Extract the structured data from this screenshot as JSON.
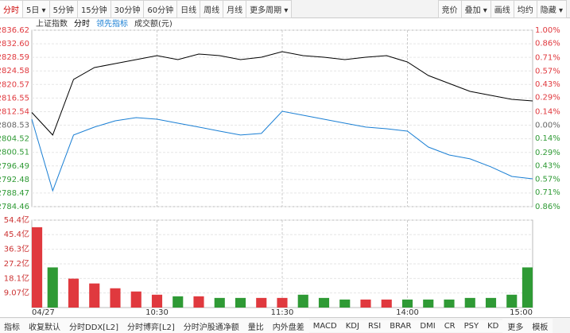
{
  "toolbar": {
    "left": [
      "分时",
      "5日 ▾",
      "5分钟",
      "15分钟",
      "30分钟",
      "60分钟",
      "日线",
      "周线",
      "月线",
      "更多周期 ▾"
    ],
    "right": [
      "竞价",
      "叠加 ▾",
      "画线",
      "均约",
      "隐藏 ▾"
    ]
  },
  "chart_data": {
    "type": "line",
    "title": "上证指数",
    "categories": [
      "04/27",
      null,
      null,
      null,
      null,
      null,
      "10:30",
      null,
      null,
      null,
      null,
      null,
      "11:30",
      null,
      null,
      null,
      null,
      null,
      "14:00",
      null,
      null,
      null,
      null,
      null,
      "15:00"
    ],
    "series": [
      {
        "name": "分时",
        "color": "#000000",
        "values": [
          2812.3,
          2805.62,
          2822.06,
          2825.58,
          2826.75,
          2827.93,
          2829.1,
          2827.93,
          2829.57,
          2829.1,
          2827.93,
          2828.63,
          2830.28,
          2829.1,
          2828.63,
          2827.93,
          2828.63,
          2829.1,
          2827.22,
          2823.23,
          2820.88,
          2818.53,
          2817.36,
          2816.18,
          2815.71
        ]
      },
      {
        "name": "领先指标",
        "color": "#1a7fd4",
        "values": [
          2810.31,
          2789.17,
          2805.62,
          2807.97,
          2809.84,
          2810.78,
          2810.31,
          2809.13,
          2807.97,
          2806.79,
          2805.62,
          2806.09,
          2812.66,
          2811.49,
          2810.31,
          2809.13,
          2807.97,
          2807.49,
          2806.79,
          2802.09,
          2799.74,
          2798.57,
          2796.22,
          2793.4,
          2792.69
        ]
      },
      {
        "name": "成交额(元)",
        "type": "bar",
        "axis": "y3",
        "up_color": "#e0393e",
        "down_color": "#2f9a35",
        "values": [
          50,
          25,
          18,
          15,
          12,
          10,
          8,
          7,
          7,
          6,
          6,
          6,
          6,
          8,
          6,
          5,
          5,
          5,
          5,
          5,
          5,
          6,
          6,
          8,
          25
        ]
      }
    ],
    "ylim": [
      2784.46,
      2836.62
    ],
    "yticks": [
      2836.62,
      {
        "value": 2832.6,
        "label": "2832.60"
      },
      2828.59,
      2824.58,
      2820.57,
      2816.55,
      2812.54,
      2808.53,
      2804.52,
      2800.51,
      2796.49,
      2792.48,
      2788.47,
      2784.46
    ],
    "y2lim": [
      -0.86,
      1.0
    ],
    "y2ticks": [
      {
        "value": 1.0,
        "label": "1.00%"
      },
      {
        "value": 0.86,
        "label": "0.86%"
      },
      {
        "value": 0.71,
        "label": "0.71%"
      },
      {
        "value": 0.57,
        "label": "0.57%"
      },
      {
        "value": 0.43,
        "label": "0.43%"
      },
      {
        "value": 0.29,
        "label": "0.29%"
      },
      {
        "value": 0.14,
        "label": "0.14%"
      },
      {
        "value": 0.0,
        "label": "0.00%"
      },
      {
        "value": -0.14,
        "label": "0.14%"
      },
      {
        "value": -0.29,
        "label": "0.29%"
      },
      {
        "value": -0.43,
        "label": "0.43%"
      },
      {
        "value": -0.57,
        "label": "0.57%"
      },
      {
        "value": -0.71,
        "label": "0.71%"
      },
      {
        "value": -0.86,
        "label": "0.86%"
      }
    ],
    "y3lim": [
      0,
      54.4
    ],
    "y3ticks": [
      {
        "value": 54.4,
        "label": "54.4亿"
      },
      {
        "value": 45.4,
        "label": "45.4亿"
      },
      {
        "value": 36.3,
        "label": "36.3亿"
      },
      {
        "value": 27.2,
        "label": "27.2亿"
      },
      {
        "value": 18.1,
        "label": "18.1亿"
      },
      {
        "value": 9.07,
        "label": "9.07亿"
      }
    ],
    "up_color": "#e0393e",
    "down_color": "#2f9a35",
    "zero_color": "#666666",
    "grid": true
  },
  "tabs": [
    "指标",
    "收复默认",
    "分时DDX[L2]",
    "分时博弈[L2]",
    "分时沪股通净额",
    "量比",
    "内外盘差",
    "MACD",
    "KDJ",
    "RSI",
    "BRAR",
    "DMI",
    "CR",
    "PSY",
    "KD",
    "更多",
    "模板"
  ]
}
